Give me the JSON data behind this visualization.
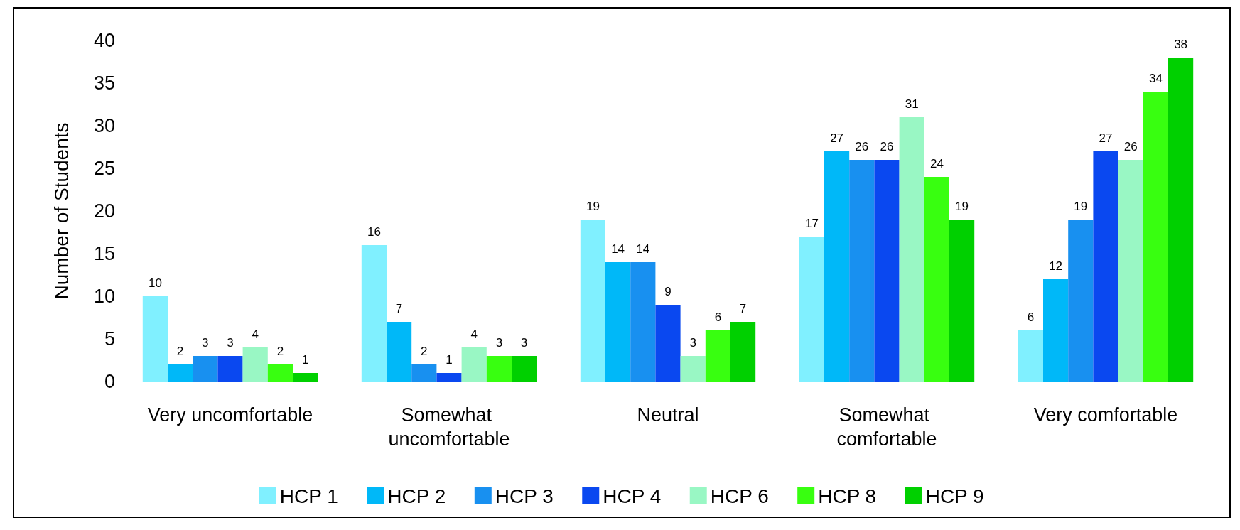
{
  "chart_data": {
    "type": "bar",
    "ylabel": "Number of Students",
    "categories": [
      "Very uncomfortable",
      "Somewhat uncomfortable",
      "Neutral",
      "Somewhat comfortable",
      "Very comfortable"
    ],
    "series": [
      {
        "name": "HCP 1",
        "color": "#80f0ff",
        "values": [
          10,
          16,
          19,
          17,
          6
        ]
      },
      {
        "name": "HCP 2",
        "color": "#00b8f8",
        "values": [
          2,
          7,
          14,
          27,
          12
        ]
      },
      {
        "name": "HCP 3",
        "color": "#1890f0",
        "values": [
          3,
          2,
          14,
          26,
          19
        ]
      },
      {
        "name": "HCP 4",
        "color": "#0a48f0",
        "values": [
          3,
          1,
          9,
          26,
          27
        ]
      },
      {
        "name": "HCP 6",
        "color": "#99f7c4",
        "values": [
          4,
          4,
          3,
          31,
          26
        ]
      },
      {
        "name": "HCP 8",
        "color": "#38ff10",
        "values": [
          2,
          3,
          6,
          24,
          34
        ]
      },
      {
        "name": "HCP 9",
        "color": "#00d000",
        "values": [
          1,
          3,
          7,
          19,
          38
        ]
      }
    ],
    "ylim": [
      0,
      40
    ],
    "yticks": [
      0,
      5,
      10,
      15,
      20,
      25,
      30,
      35,
      40
    ],
    "grid": false,
    "legend": "bottom",
    "data_labels": true
  }
}
